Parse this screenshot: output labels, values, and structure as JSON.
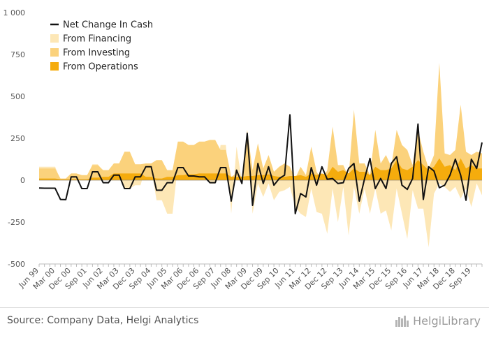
{
  "chart_data": {
    "type": "area",
    "title": "",
    "xlabel": "",
    "ylabel": "",
    "ylim": [
      -500,
      1000
    ],
    "y_ticks": [
      "1 000",
      "750",
      "500",
      "250",
      "0",
      "-250",
      "-500"
    ],
    "y_tick_values": [
      1000,
      750,
      500,
      250,
      0,
      -250,
      -500
    ],
    "x_tick_labels": [
      "Jun 99",
      "Mar 00",
      "Dec 00",
      "Sep 01",
      "Jun 02",
      "Mar 03",
      "Dec 03",
      "Sep 04",
      "Jun 05",
      "Mar 06",
      "Dec 06",
      "Sep 07",
      "Jun 08",
      "Mar 09",
      "Dec 09",
      "Sep 10",
      "Jun 11",
      "Mar 12",
      "Dec 12",
      "Sep 13",
      "Jun 14",
      "Mar 15",
      "Dec 15",
      "Sep 16",
      "Jun 17",
      "Mar 18",
      "Dec 18",
      "Sep 19"
    ],
    "legend_position": "top-left",
    "grid": false,
    "colors": {
      "net": "#111111",
      "financing": "#fde7b6",
      "investing": "#fbd27c",
      "operations": "#f5ac0d"
    },
    "series": [
      {
        "name": "Net Change In Cash",
        "kind": "line",
        "values": [
          -47,
          -48,
          -48,
          -48,
          -115,
          -116,
          20,
          20,
          -50,
          -50,
          50,
          50,
          -15,
          -15,
          30,
          30,
          -50,
          -50,
          20,
          20,
          80,
          80,
          -60,
          -60,
          -15,
          -15,
          75,
          75,
          25,
          25,
          20,
          20,
          -15,
          -15,
          75,
          75,
          -125,
          60,
          -20,
          280,
          -150,
          100,
          -20,
          80,
          -30,
          10,
          30,
          390,
          -200,
          -80,
          -100,
          75,
          -30,
          80,
          5,
          10,
          -20,
          -15,
          70,
          100,
          -125,
          10,
          130,
          -50,
          10,
          -50,
          100,
          140,
          -30,
          -55,
          10,
          335,
          -115,
          80,
          55,
          -45,
          -30,
          30,
          125,
          30,
          -120,
          125,
          70,
          225
        ]
      },
      {
        "name": "From Financing",
        "kind": "area",
        "values": [
          80,
          80,
          80,
          80,
          0,
          0,
          40,
          40,
          25,
          25,
          95,
          95,
          55,
          55,
          60,
          60,
          -50,
          -50,
          -30,
          -30,
          80,
          80,
          -120,
          -120,
          -200,
          -200,
          90,
          90,
          20,
          20,
          15,
          15,
          -20,
          -20,
          210,
          210,
          -200,
          200,
          -10,
          270,
          -200,
          -20,
          -100,
          -20,
          -120,
          -70,
          -60,
          -40,
          -160,
          -200,
          -220,
          -50,
          -190,
          -200,
          -320,
          -50,
          -250,
          -40,
          -330,
          -40,
          -200,
          -50,
          -200,
          -50,
          -200,
          -180,
          -300,
          -50,
          -200,
          -350,
          -60,
          -170,
          -170,
          -400,
          -80,
          -20,
          -40,
          -70,
          -40,
          -110,
          -50,
          -160,
          -20,
          -90
        ]
      },
      {
        "name": "From Investing",
        "kind": "area",
        "values": [
          70,
          70,
          70,
          70,
          10,
          10,
          40,
          40,
          30,
          30,
          90,
          90,
          60,
          60,
          100,
          100,
          170,
          170,
          95,
          95,
          100,
          100,
          120,
          120,
          60,
          60,
          230,
          230,
          210,
          210,
          230,
          230,
          240,
          240,
          180,
          180,
          20,
          40,
          20,
          300,
          60,
          220,
          70,
          150,
          50,
          80,
          100,
          80,
          10,
          80,
          30,
          200,
          50,
          0,
          60,
          320,
          90,
          90,
          20,
          420,
          100,
          100,
          30,
          300,
          100,
          150,
          80,
          300,
          210,
          180,
          90,
          300,
          170,
          70,
          150,
          700,
          160,
          150,
          180,
          450,
          170,
          150,
          170,
          160
        ]
      },
      {
        "name": "From Operations",
        "kind": "area",
        "values": [
          10,
          10,
          10,
          10,
          5,
          5,
          5,
          5,
          5,
          5,
          15,
          15,
          20,
          20,
          40,
          40,
          40,
          40,
          40,
          40,
          20,
          20,
          10,
          10,
          20,
          20,
          30,
          30,
          35,
          35,
          40,
          40,
          40,
          40,
          40,
          40,
          20,
          20,
          20,
          25,
          25,
          30,
          30,
          35,
          25,
          20,
          20,
          25,
          25,
          30,
          20,
          40,
          30,
          40,
          30,
          80,
          50,
          60,
          40,
          70,
          50,
          50,
          30,
          80,
          60,
          60,
          70,
          120,
          70,
          60,
          80,
          120,
          90,
          60,
          80,
          130,
          80,
          90,
          60,
          130,
          70,
          90,
          70,
          70
        ]
      }
    ]
  },
  "footer": {
    "source": "Source: Company Data, Helgi Analytics",
    "brand": "HelgiLibrary"
  }
}
